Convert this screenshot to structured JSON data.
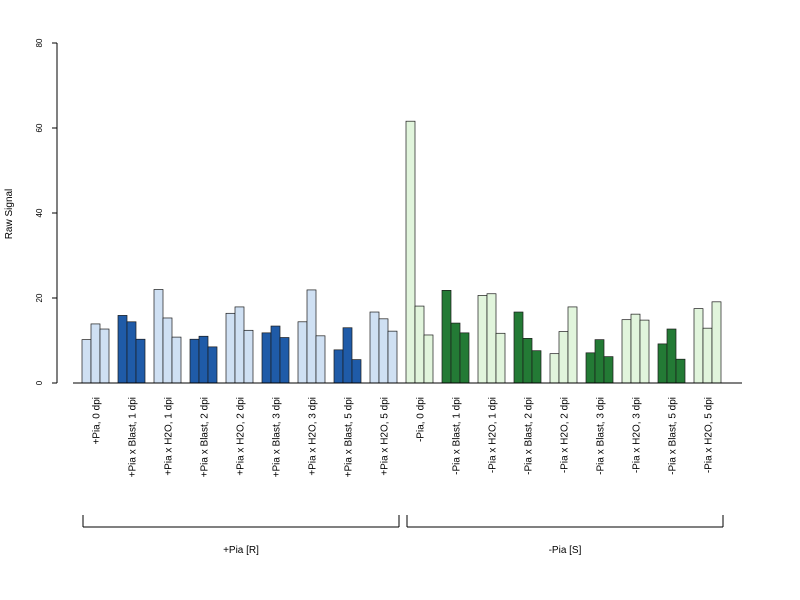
{
  "chart_data": {
    "type": "bar",
    "ylabel": "Raw Signal",
    "ylim": [
      0,
      80
    ],
    "yticks": [
      0,
      20,
      40,
      60,
      80
    ],
    "categories": [
      "+Pia, 0 dpi",
      "+Pia x Blast, 1 dpi",
      "+Pia x H2O, 1 dpi",
      "+Pia x Blast, 2 dpi",
      "+Pia x H2O, 2 dpi",
      "+Pia x Blast, 3 dpi",
      "+Pia x H2O, 3 dpi",
      "+Pia x Blast, 5 dpi",
      "+Pia x H2O, 5 dpi",
      "-Pia, 0 dpi",
      "-Pia x Blast, 1 dpi",
      "-Pia x H2O, 1 dpi",
      "-Pia x Blast, 2 dpi",
      "-Pia x H2O, 2 dpi",
      "-Pia x Blast, 3 dpi",
      "-Pia x H2O, 3 dpi",
      "-Pia x Blast, 5 dpi",
      "-Pia x H2O, 5 dpi"
    ],
    "values": [
      [
        10.2,
        13.9,
        12.7
      ],
      [
        15.9,
        14.4,
        10.3
      ],
      [
        22.0,
        15.3,
        10.8
      ],
      [
        10.3,
        11.0,
        8.5
      ],
      [
        16.4,
        17.9,
        12.4
      ],
      [
        11.8,
        13.4,
        10.7
      ],
      [
        14.4,
        21.9,
        11.1
      ],
      [
        7.8,
        13.0,
        5.5
      ],
      [
        16.7,
        15.1,
        12.2
      ],
      [
        61.6,
        18.1,
        11.3
      ],
      [
        21.8,
        14.1,
        11.8
      ],
      [
        20.6,
        21.0,
        11.7
      ],
      [
        16.7,
        10.5,
        7.6
      ],
      [
        6.9,
        12.1,
        17.9
      ],
      [
        7.1,
        10.2,
        6.2
      ],
      [
        14.9,
        16.2,
        14.8
      ],
      [
        9.2,
        12.7,
        5.6
      ],
      [
        17.5,
        12.9,
        19.1
      ]
    ],
    "bar_colors": [
      "#cfe0f3",
      "#1f5ba8",
      "#cfe0f3",
      "#1f5ba8",
      "#cfe0f3",
      "#1f5ba8",
      "#cfe0f3",
      "#1f5ba8",
      "#cfe0f3",
      "#e1f5dc",
      "#237a35",
      "#e1f5dc",
      "#237a35",
      "#e1f5dc",
      "#237a35",
      "#e1f5dc",
      "#237a35",
      "#e1f5dc"
    ],
    "groups": [
      {
        "label": "+Pia [R]",
        "from": 0,
        "to": 8
      },
      {
        "label": "-Pia [S]",
        "from": 9,
        "to": 17
      }
    ],
    "grid": false
  }
}
